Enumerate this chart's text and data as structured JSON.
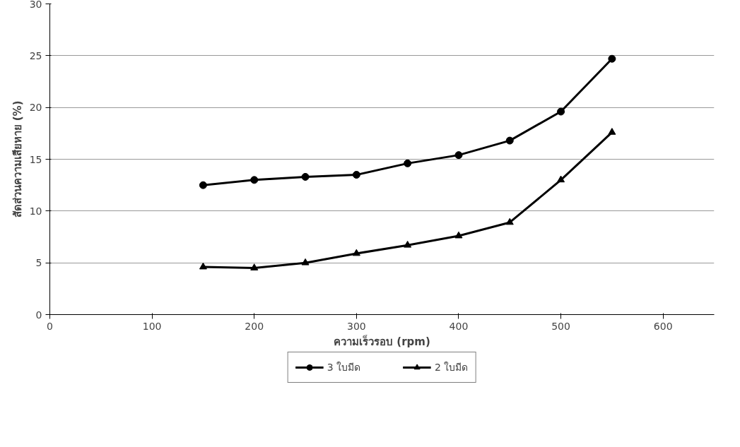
{
  "chart_data": {
    "type": "line",
    "xlabel": "ความเร็วรอบ (rpm)",
    "ylabel": "สัดส่วนความเสียหาย (%)",
    "x": [
      150,
      200,
      250,
      300,
      350,
      400,
      450,
      500,
      550
    ],
    "series": [
      {
        "name": "3 ใบมีด",
        "color": "#000000",
        "marker": "circle",
        "values": [
          12.5,
          13.0,
          13.3,
          13.5,
          14.6,
          15.4,
          16.8,
          19.6,
          24.7
        ]
      },
      {
        "name": "2 ใบมีด",
        "color": "#000000",
        "marker": "triangle",
        "values": [
          4.6,
          4.5,
          5.0,
          5.9,
          6.7,
          7.6,
          8.9,
          13.0,
          17.6
        ]
      }
    ],
    "xlim": [
      0,
      650
    ],
    "ylim": [
      0,
      30
    ],
    "xticks": [
      0,
      100,
      200,
      300,
      400,
      500,
      600
    ],
    "yticks": [
      0,
      5,
      10,
      15,
      20,
      25,
      30
    ],
    "grid": "y",
    "legend": "bottom",
    "line_style": "solid"
  }
}
